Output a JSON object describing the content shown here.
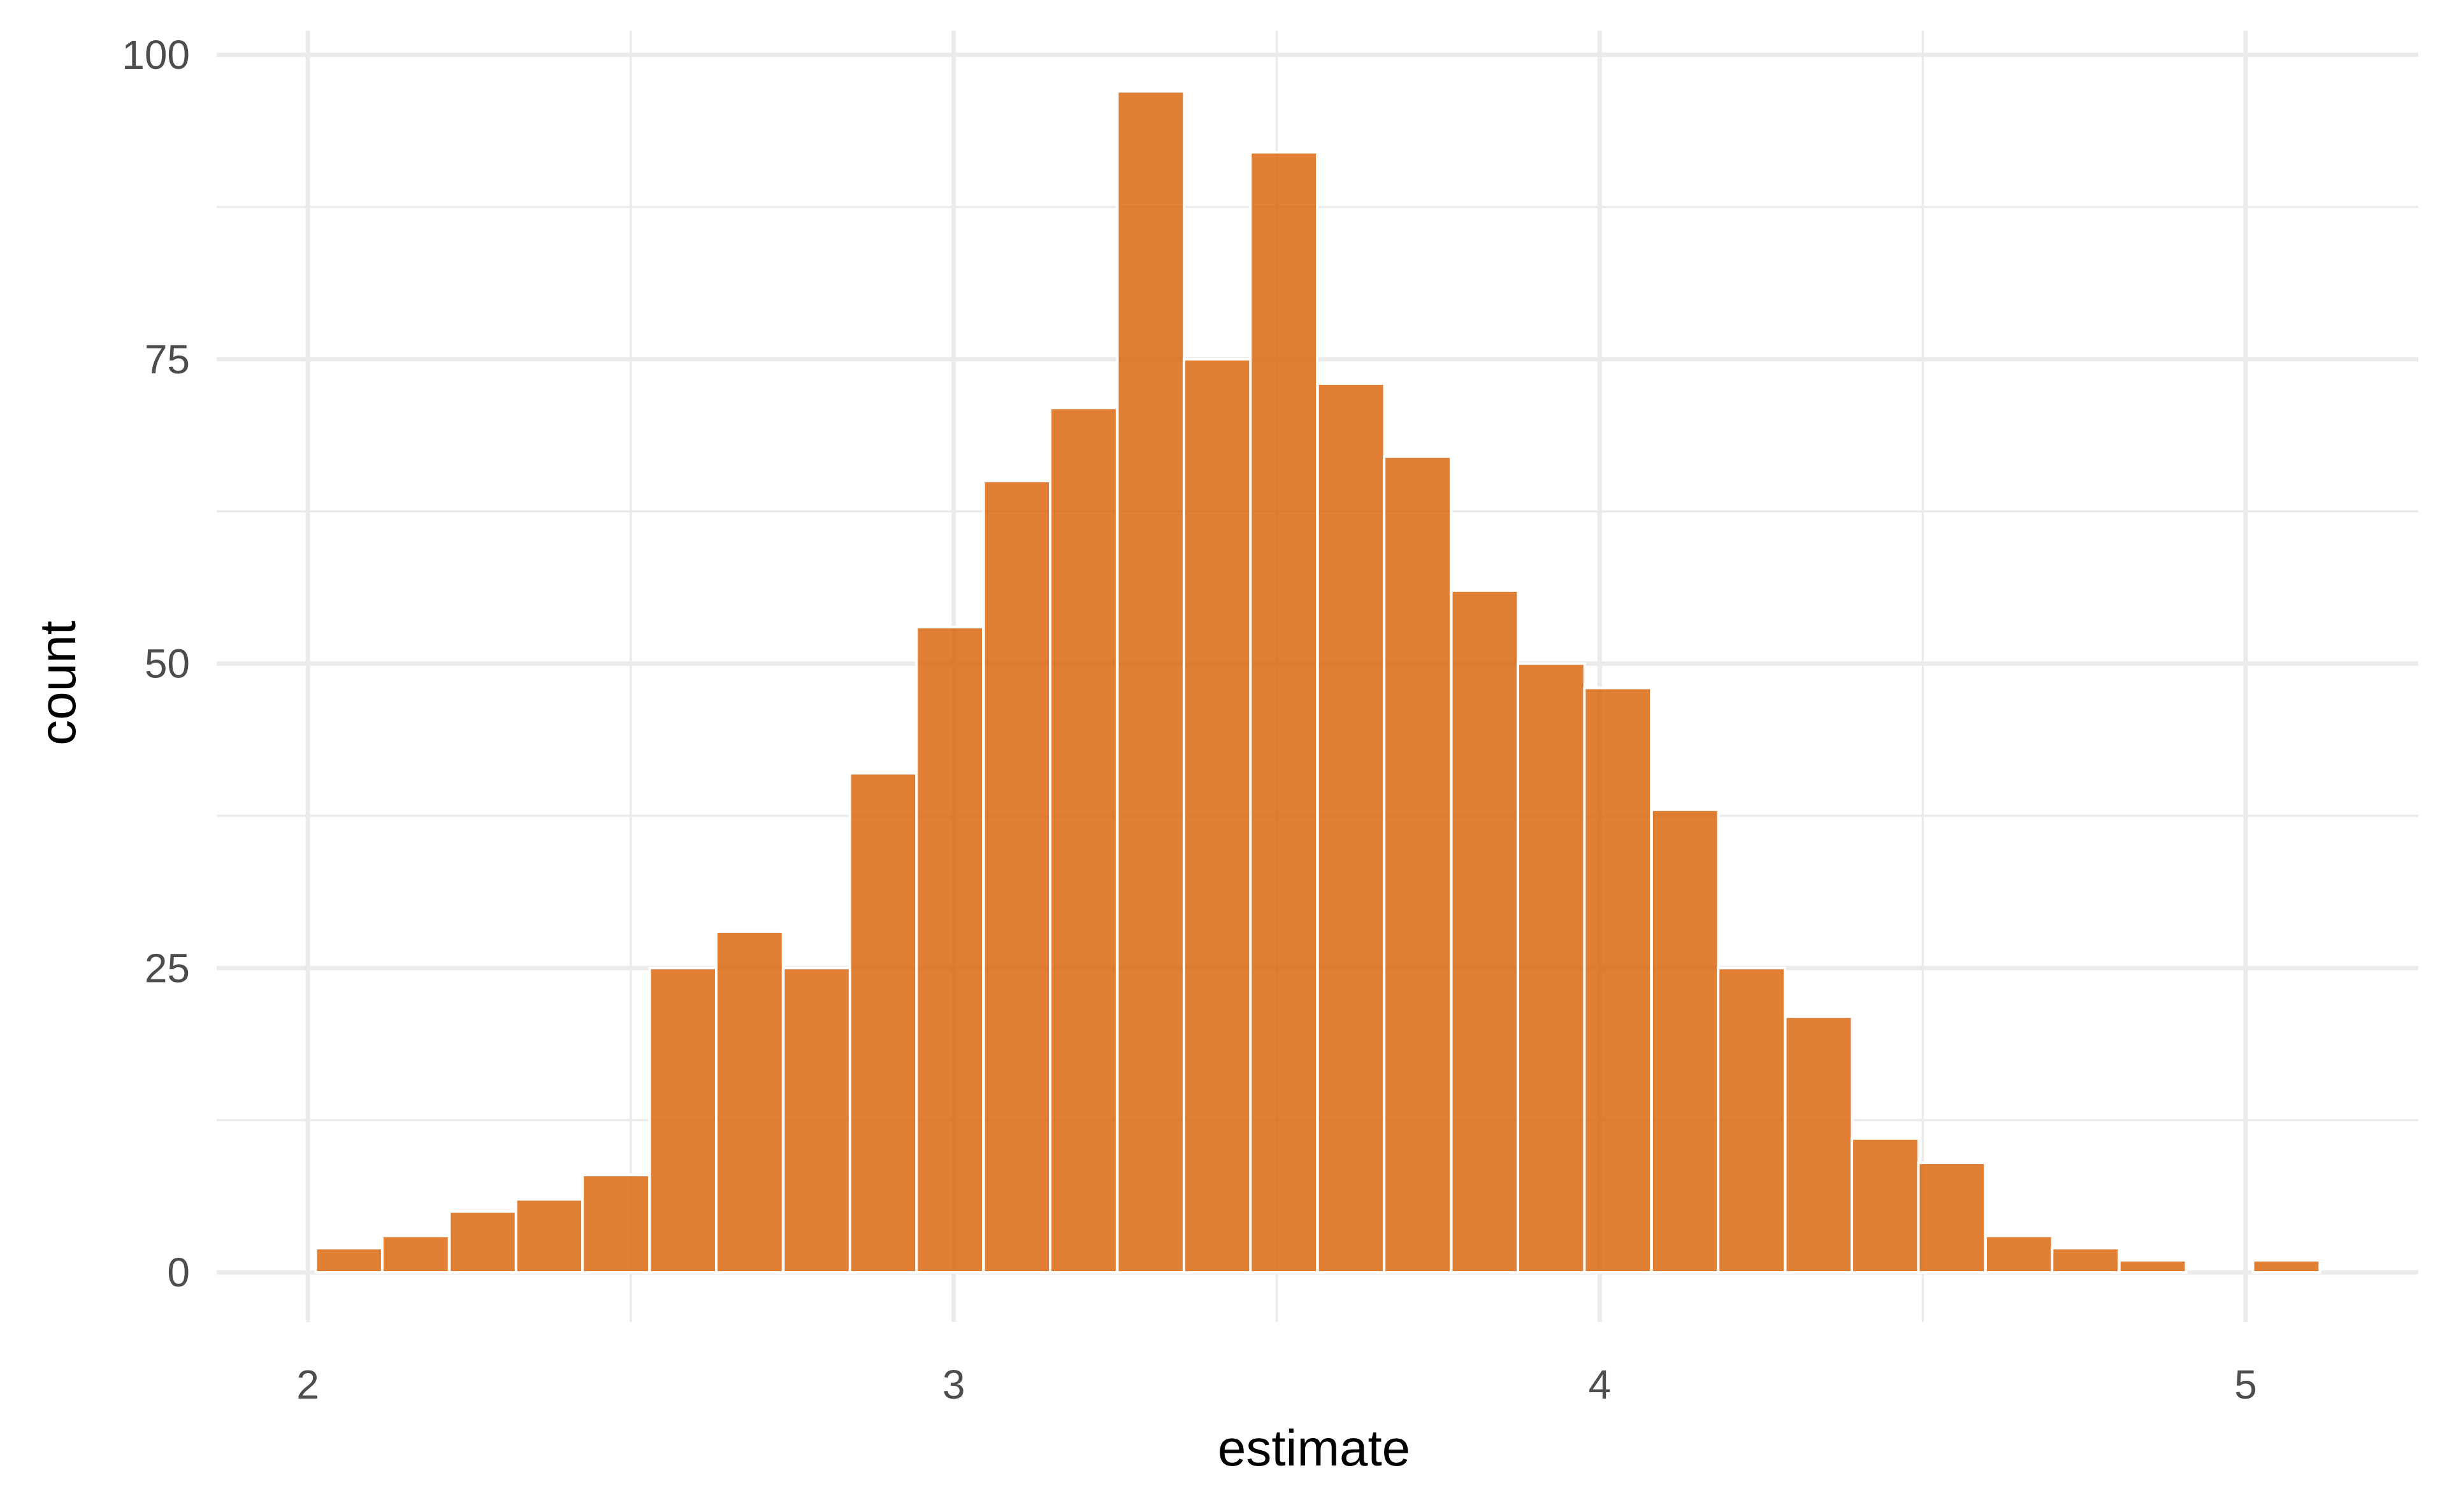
{
  "chart_data": {
    "type": "bar",
    "subtype": "histogram",
    "xlabel": "estimate",
    "ylabel": "count",
    "xlim": [
      1.87,
      5.27
    ],
    "ylim": [
      -4,
      102
    ],
    "x_ticks": [
      2,
      3,
      4,
      5
    ],
    "x_tick_labels": [
      "2",
      "3",
      "4",
      "5"
    ],
    "x_minor_ticks": [
      2.5,
      3.5,
      4.5
    ],
    "y_ticks": [
      0,
      25,
      50,
      75,
      100
    ],
    "y_tick_labels": [
      "0",
      "25",
      "50",
      "75",
      "100"
    ],
    "y_minor_ticks": [
      12.5,
      37.5,
      62.5,
      87.5
    ],
    "bin_width": 0.1034,
    "bin_centers": [
      2.064,
      2.167,
      2.271,
      2.374,
      2.477,
      2.581,
      2.684,
      2.788,
      2.891,
      2.994,
      3.098,
      3.201,
      3.305,
      3.408,
      3.511,
      3.615,
      3.718,
      3.822,
      3.925,
      4.028,
      4.132,
      4.235,
      4.339,
      4.442,
      4.545,
      4.649,
      4.752,
      4.856,
      4.959,
      5.063
    ],
    "counts": [
      2,
      3,
      5,
      6,
      8,
      25,
      28,
      25,
      41,
      53,
      65,
      71,
      97,
      75,
      92,
      73,
      67,
      56,
      50,
      48,
      38,
      25,
      21,
      11,
      9,
      3,
      2,
      1,
      0,
      1
    ],
    "bar_color": "#d95f02",
    "bar_opacity": 0.8,
    "grid": true,
    "legend": "none"
  }
}
